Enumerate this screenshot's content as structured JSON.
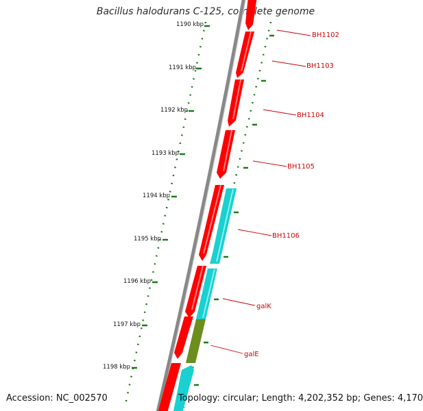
{
  "title": "Bacillus halodurans C-125, complete genome",
  "accession": "Accession: NC_002570",
  "topology": "Topology: circular; Length: 4,202,352 bp; Genes: 4,170",
  "colors": {
    "backbone": "#888888",
    "forward_gene": "#ff0000",
    "reverse_gene": "#1ad0d0",
    "highlight_gene": "#6b8e1e",
    "tick": "#006400",
    "label": "#cc0000"
  },
  "ruler": {
    "ticks": [
      {
        "label": "1190 kbp"
      },
      {
        "label": "1191 kbp"
      },
      {
        "label": "1192 kbp"
      },
      {
        "label": "1193 kbp"
      },
      {
        "label": "1194 kbp"
      },
      {
        "label": "1195 kbp"
      },
      {
        "label": "1196 kbp"
      },
      {
        "label": "1197 kbp"
      },
      {
        "label": "1198 kbp"
      }
    ]
  },
  "genes": {
    "labels": [
      "BH1102",
      "BH1103",
      "BH1104",
      "BH1105",
      "BH1106",
      "galK",
      "galE"
    ]
  }
}
